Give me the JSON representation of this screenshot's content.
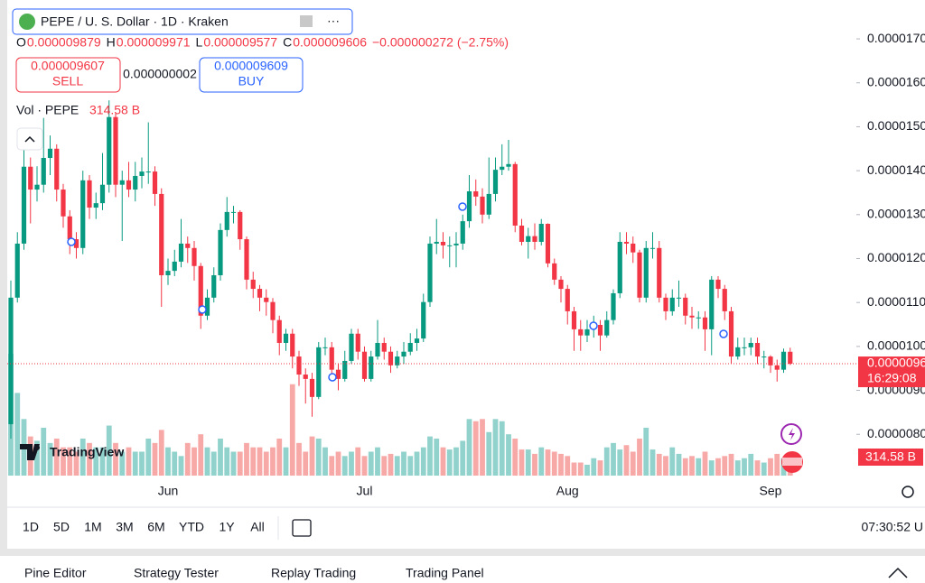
{
  "header": {
    "symbol": "PEPE / U. S. Dollar · 1D · Kraken",
    "ohlc": [
      {
        "key": "O",
        "value": "0.000009879"
      },
      {
        "key": "H",
        "value": "0.000009971"
      },
      {
        "key": "L",
        "value": "0.000009577"
      },
      {
        "key": "C",
        "value": "0.000009606"
      }
    ],
    "change": "−0.000000272 (−2.75%)"
  },
  "trade": {
    "sell_price": "0.000009607",
    "sell": "SELL",
    "spread": "0.000000002",
    "buy_price": "0.000009609",
    "buy": "BUY"
  },
  "volume_legend": {
    "name": "Vol · PEPE",
    "value": "314.58 B"
  },
  "logo": "TradingView",
  "chart_data": {
    "type": "candlestick",
    "categories": [
      null,
      null,
      null,
      null,
      null,
      null,
      null,
      null,
      null,
      null,
      null,
      null,
      null,
      null,
      null,
      null,
      null,
      null,
      null,
      null,
      null,
      null,
      null,
      null,
      "Jun",
      null,
      null,
      null,
      null,
      null,
      null,
      null,
      null,
      null,
      null,
      null,
      null,
      null,
      null,
      null,
      null,
      null,
      null,
      null,
      null,
      null,
      null,
      null,
      null,
      null,
      null,
      null,
      null,
      null,
      "Jul",
      null,
      null,
      null,
      null,
      null,
      null,
      null,
      null,
      null,
      null,
      null,
      null,
      null,
      null,
      null,
      null,
      null,
      null,
      null,
      null,
      null,
      null,
      null,
      null,
      null,
      null,
      null,
      null,
      null,
      null,
      "Aug",
      null,
      null,
      null,
      null,
      null,
      null,
      null,
      null,
      null,
      null,
      null,
      null,
      null,
      null,
      null,
      null,
      null,
      null,
      null,
      null,
      null,
      null,
      null,
      null,
      null,
      null,
      null,
      null,
      null,
      null,
      "Sep",
      null,
      null,
      null
    ],
    "open": [
      8.23e-06,
      1.111e-05,
      1.234e-05,
      1.409e-05,
      1.357e-05,
      1.368e-05,
      1.429e-05,
      1.45e-05,
      1.357e-05,
      1.296e-05,
      1.244e-05,
      1.224e-05,
      1.378e-05,
      1.316e-05,
      1.326e-05,
      1.368e-05,
      1.522e-05,
      1.368e-05,
      1.378e-05,
      1.357e-05,
      1.388e-05,
      1.398e-05,
      1.398e-05,
      1.347e-05,
      1.162e-05,
      1.172e-05,
      1.193e-05,
      1.234e-05,
      1.224e-05,
      1.183e-05,
      1.07e-05,
      1.111e-05,
      1.162e-05,
      1.265e-05,
      1.306e-05,
      1.306e-05,
      1.244e-05,
      1.152e-05,
      1.131e-05,
      1.111e-05,
      1.101e-05,
      1.06e-05,
      1.008e-05,
      1.029e-05,
      9.77e-06,
      9.36e-06,
      9.26e-06,
      8.85e-06,
      9.98e-06,
      9.98e-06,
      9.47e-06,
      9.26e-06,
      9.67e-06,
      1.029e-05,
      9.88e-06,
      9.26e-06,
      9.77e-06,
      1.008e-05,
      9.88e-06,
      9.57e-06,
      9.77e-06,
      9.88e-06,
      1.008e-05,
      1.018e-05,
      1.101e-05,
      1.234e-05,
      1.238e-05,
      1.23e-05,
      1.23e-05,
      1.234e-05,
      1.285e-05,
      1.353e-05,
      1.341e-05,
      1.3e-05,
      1.347e-05,
      1.402e-05,
      1.409e-05,
      1.415e-05,
      1.275e-05,
      1.238e-05,
      1.251e-05,
      1.238e-05,
      1.279e-05,
      1.189e-05,
      1.152e-05,
      1.131e-05,
      1.08e-05,
      1.039e-05,
      1.025e-05,
      1.039e-05,
      1.049e-05,
      1.025e-05,
      1.06e-05,
      1.121e-05,
      1.238e-05,
      1.234e-05,
      1.214e-05,
      1.111e-05,
      1.224e-05,
      1.224e-05,
      1.111e-05,
      1.08e-05,
      1.111e-05,
      1.111e-05,
      1.07e-05,
      1.066e-05,
      1.066e-05,
      1.039e-05,
      1.152e-05,
      1.131e-05,
      1.08e-05,
      9.77e-06,
      9.98e-06,
      9.98e-06,
      1.008e-05,
      9.77e-06,
      9.77e-06,
      9.57e-06,
      9.47e-06,
      9.879e-06
    ],
    "high": [
      1.15e-05,
      1.26e-05,
      1.46e-05,
      1.43e-05,
      1.41e-05,
      1.52e-05,
      1.48e-05,
      1.46e-05,
      1.37e-05,
      1.31e-05,
      1.26e-05,
      1.4e-05,
      1.39e-05,
      1.35e-05,
      1.44e-05,
      1.56e-05,
      1.53e-05,
      1.4e-05,
      1.42e-05,
      1.42e-05,
      1.43e-05,
      1.51e-05,
      1.41e-05,
      1.36e-05,
      1.2e-05,
      1.22e-05,
      1.29e-05,
      1.25e-05,
      1.24e-05,
      1.19e-05,
      1.13e-05,
      1.18e-05,
      1.28e-05,
      1.34e-05,
      1.32e-05,
      1.31e-05,
      1.25e-05,
      1.17e-05,
      1.14e-05,
      1.13e-05,
      1.11e-05,
      1.07e-05,
      1.04e-05,
      1.04e-05,
      9.9e-06,
      9.5e-06,
      9.4e-06,
      1.01e-05,
      1.02e-05,
      1.01e-05,
      9.6e-06,
      9.9e-06,
      1.04e-05,
      1.04e-05,
      1e-05,
      9.9e-06,
      1.06e-05,
      1.02e-05,
      1e-05,
      9.9e-06,
      1.01e-05,
      1.03e-05,
      1.04e-05,
      1.12e-05,
      1.25e-05,
      1.29e-05,
      1.26e-05,
      1.25e-05,
      1.26e-05,
      1.3e-05,
      1.39e-05,
      1.38e-05,
      1.36e-05,
      1.43e-05,
      1.43e-05,
      1.46e-05,
      1.47e-05,
      1.42e-05,
      1.29e-05,
      1.27e-05,
      1.28e-05,
      1.29e-05,
      1.28e-05,
      1.2e-05,
      1.16e-05,
      1.14e-05,
      1.09e-05,
      1.06e-05,
      1.06e-05,
      1.07e-05,
      1.06e-05,
      1.08e-05,
      1.13e-05,
      1.26e-05,
      1.26e-05,
      1.25e-05,
      1.22e-05,
      1.24e-05,
      1.26e-05,
      1.24e-05,
      1.12e-05,
      1.13e-05,
      1.15e-05,
      1.12e-05,
      1.09e-05,
      1.08e-05,
      1.08e-05,
      1.16e-05,
      1.16e-05,
      1.14e-05,
      1.09e-05,
      1.02e-05,
      1.02e-05,
      1.02e-05,
      1.02e-05,
      9.9e-06,
      9.8e-06,
      9.7e-06,
      9.95e-06,
      9.971e-06
    ],
    "low": [
      7.9e-06,
      1.1e-05,
      1.22e-05,
      1.28e-05,
      1.33e-05,
      1.35e-05,
      1.39e-05,
      1.33e-05,
      1.27e-05,
      1.21e-05,
      1.2e-05,
      1.21e-05,
      1.29e-05,
      1.29e-05,
      1.31e-05,
      1.35e-05,
      1.34e-05,
      1.24e-05,
      1.34e-05,
      1.33e-05,
      1.36e-05,
      1.37e-05,
      1.32e-05,
      1.09e-05,
      1.14e-05,
      1.16e-05,
      1.18e-05,
      1.19e-05,
      1.15e-05,
      1.04e-05,
      1.06e-05,
      1.1e-05,
      1.15e-05,
      1.25e-05,
      1.28e-05,
      1.22e-05,
      1.13e-05,
      1.11e-05,
      1.08e-05,
      1.07e-05,
      1.03e-05,
      9.8e-06,
      9.9e-06,
      9.5e-06,
      9.1e-06,
      8.7e-06,
      8.4e-06,
      8.8e-06,
      9.8e-06,
      9.3e-06,
      9e-06,
      9.2e-06,
      9.6e-06,
      9.7e-06,
      9.2e-06,
      9.2e-06,
      9.7e-06,
      9.7e-06,
      9.4e-06,
      9.5e-06,
      9.6e-06,
      9.8e-06,
      9.9e-06,
      1.01e-05,
      1.09e-05,
      1.21e-05,
      1.2e-05,
      1.18e-05,
      1.18e-05,
      1.22e-05,
      1.27e-05,
      1.32e-05,
      1.28e-05,
      1.29e-05,
      1.33e-05,
      1.39e-05,
      1.4e-05,
      1.26e-05,
      1.23e-05,
      1.2e-05,
      1.22e-05,
      1.23e-05,
      1.18e-05,
      1.14e-05,
      1.1e-05,
      1.05e-05,
      9.9e-06,
      9.9e-06,
      1.01e-05,
      1.02e-05,
      9.9e-06,
      1.02e-05,
      1.05e-05,
      1.11e-05,
      1.21e-05,
      1.19e-05,
      1.1e-05,
      1.1e-05,
      1.2e-05,
      1.1e-05,
      1.06e-05,
      1.07e-05,
      1.09e-05,
      1.05e-05,
      1.04e-05,
      1.04e-05,
      9.9e-06,
      9.8e-06,
      1.11e-05,
      1.06e-05,
      9.6e-06,
      9.7e-06,
      9.8e-06,
      9.8e-06,
      9.6e-06,
      9.5e-06,
      9.4e-06,
      9.2e-06,
      9.4e-06,
      9.577e-06
    ],
    "close": [
      1.111e-05,
      1.234e-05,
      1.409e-05,
      1.357e-05,
      1.368e-05,
      1.429e-05,
      1.45e-05,
      1.357e-05,
      1.296e-05,
      1.244e-05,
      1.224e-05,
      1.378e-05,
      1.316e-05,
      1.326e-05,
      1.368e-05,
      1.522e-05,
      1.368e-05,
      1.378e-05,
      1.357e-05,
      1.388e-05,
      1.398e-05,
      1.398e-05,
      1.347e-05,
      1.162e-05,
      1.172e-05,
      1.193e-05,
      1.234e-05,
      1.224e-05,
      1.183e-05,
      1.07e-05,
      1.111e-05,
      1.162e-05,
      1.265e-05,
      1.306e-05,
      1.306e-05,
      1.244e-05,
      1.152e-05,
      1.131e-05,
      1.111e-05,
      1.101e-05,
      1.06e-05,
      1.008e-05,
      1.029e-05,
      9.77e-06,
      9.36e-06,
      9.26e-06,
      8.85e-06,
      9.98e-06,
      9.98e-06,
      9.47e-06,
      9.26e-06,
      9.67e-06,
      1.029e-05,
      9.88e-06,
      9.26e-06,
      9.77e-06,
      1.008e-05,
      9.88e-06,
      9.57e-06,
      9.77e-06,
      9.88e-06,
      1.008e-05,
      1.018e-05,
      1.101e-05,
      1.234e-05,
      1.238e-05,
      1.23e-05,
      1.23e-05,
      1.234e-05,
      1.285e-05,
      1.353e-05,
      1.341e-05,
      1.3e-05,
      1.347e-05,
      1.402e-05,
      1.409e-05,
      1.415e-05,
      1.275e-05,
      1.238e-05,
      1.251e-05,
      1.238e-05,
      1.279e-05,
      1.189e-05,
      1.152e-05,
      1.131e-05,
      1.08e-05,
      1.039e-05,
      1.025e-05,
      1.039e-05,
      1.049e-05,
      1.025e-05,
      1.06e-05,
      1.121e-05,
      1.238e-05,
      1.234e-05,
      1.214e-05,
      1.111e-05,
      1.224e-05,
      1.224e-05,
      1.111e-05,
      1.08e-05,
      1.111e-05,
      1.111e-05,
      1.07e-05,
      1.066e-05,
      1.066e-05,
      1.039e-05,
      1.152e-05,
      1.131e-05,
      1.08e-05,
      9.77e-06,
      9.98e-06,
      9.98e-06,
      1.008e-05,
      9.77e-06,
      9.77e-06,
      9.57e-06,
      9.47e-06,
      9.879e-06,
      9.606e-06
    ],
    "up_color": "#089981",
    "down_color": "#f23645",
    "ylim": [
      7.06e-06,
      1.772e-05
    ],
    "yticks": [
      {
        "value": 8e-06,
        "label": "0.0000080"
      },
      {
        "value": 9e-06,
        "label": "0.0000090"
      },
      {
        "value": 1e-05,
        "label": "0.0000100"
      },
      {
        "value": 1.1e-05,
        "label": "0.0000110"
      },
      {
        "value": 1.2e-05,
        "label": "0.0000120"
      },
      {
        "value": 1.3e-05,
        "label": "0.0000130"
      },
      {
        "value": 1.4e-05,
        "label": "0.0000140"
      },
      {
        "value": 1.5e-05,
        "label": "0.0000150"
      },
      {
        "value": 1.6e-05,
        "label": "0.0000160"
      },
      {
        "value": 1.7e-05,
        "label": "0.0000170"
      }
    ],
    "grid": false,
    "current_price_label": "0.0000096",
    "countdown": "16:29:08",
    "volume": {
      "up_color": "#92d2cc",
      "down_color": "#f7a9a7",
      "last_label": "314.58 B",
      "values": [
        2800,
        1900,
        1300,
        900,
        800,
        1100,
        750,
        850,
        650,
        650,
        550,
        850,
        750,
        650,
        650,
        1150,
        750,
        550,
        650,
        550,
        550,
        850,
        750,
        1050,
        650,
        550,
        450,
        750,
        650,
        950,
        650,
        550,
        850,
        650,
        550,
        550,
        750,
        650,
        650,
        550,
        650,
        850,
        650,
        2100,
        750,
        550,
        900,
        850,
        650,
        450,
        550,
        450,
        550,
        650,
        450,
        550,
        650,
        450,
        500,
        450,
        550,
        450,
        550,
        650,
        900,
        850,
        650,
        600,
        650,
        800,
        1300,
        1250,
        1300,
        1000,
        1300,
        1250,
        950,
        850,
        600,
        600,
        500,
        650,
        600,
        550,
        500,
        450,
        300,
        300,
        250,
        400,
        350,
        650,
        750,
        600,
        700,
        550,
        850,
        1100,
        600,
        500,
        450,
        650,
        500,
        400,
        450,
        400,
        550,
        350,
        400,
        450,
        500,
        350,
        400,
        500,
        350,
        300,
        400,
        500,
        400,
        314.58
      ]
    }
  },
  "toolbar": {
    "ranges": [
      "1D",
      "5D",
      "1M",
      "3M",
      "6M",
      "YTD",
      "1Y",
      "All"
    ],
    "clock": "07:30:52 U"
  },
  "tabs": [
    "Pine Editor",
    "Strategy Tester",
    "Replay Trading",
    "Trading Panel"
  ]
}
